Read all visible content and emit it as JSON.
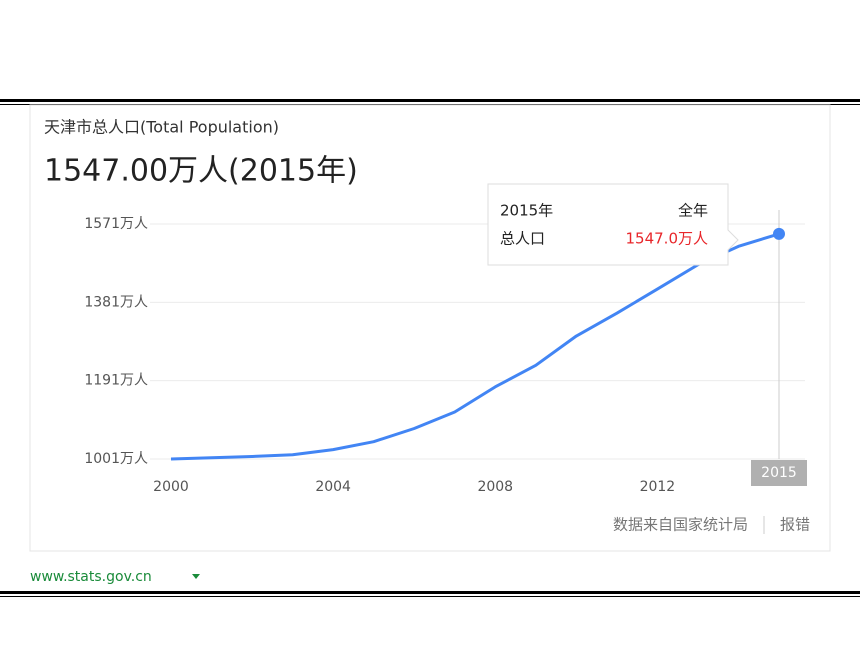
{
  "chart_data": {
    "type": "line",
    "subtitle": "天津市总人口(Total Population)",
    "title": "1547.00万人(2015年)",
    "x": [
      2000,
      2001,
      2002,
      2003,
      2004,
      2005,
      2006,
      2007,
      2008,
      2009,
      2010,
      2011,
      2012,
      2013,
      2014,
      2015
    ],
    "series": [
      {
        "name": "总人口",
        "color": "#4285f4",
        "values": [
          1001.1,
          1004.1,
          1007.2,
          1011.3,
          1023.7,
          1043.0,
          1075.0,
          1115.0,
          1176.0,
          1228.2,
          1299.3,
          1354.6,
          1413.2,
          1472.2,
          1516.8,
          1547.0
        ]
      }
    ],
    "xlim": [
      2000,
      2015
    ],
    "xticks": [
      2000,
      2004,
      2008,
      2012
    ],
    "ylim": [
      1001,
      1571
    ],
    "yticks": [
      {
        "value": 1001,
        "label": "1001万人"
      },
      {
        "value": 1191,
        "label": "1191万人"
      },
      {
        "value": 1381,
        "label": "1381万人"
      },
      {
        "value": 1571,
        "label": "1571万人"
      }
    ],
    "grid": true,
    "crosshair_x": 2015,
    "tooltip": {
      "x_label": "2015年",
      "period": "全年",
      "name": "总人口",
      "value_label": "1547.0万人"
    },
    "source": "数据来自国家统计局",
    "report": "报错",
    "site": "www.stats.gov.cn"
  }
}
